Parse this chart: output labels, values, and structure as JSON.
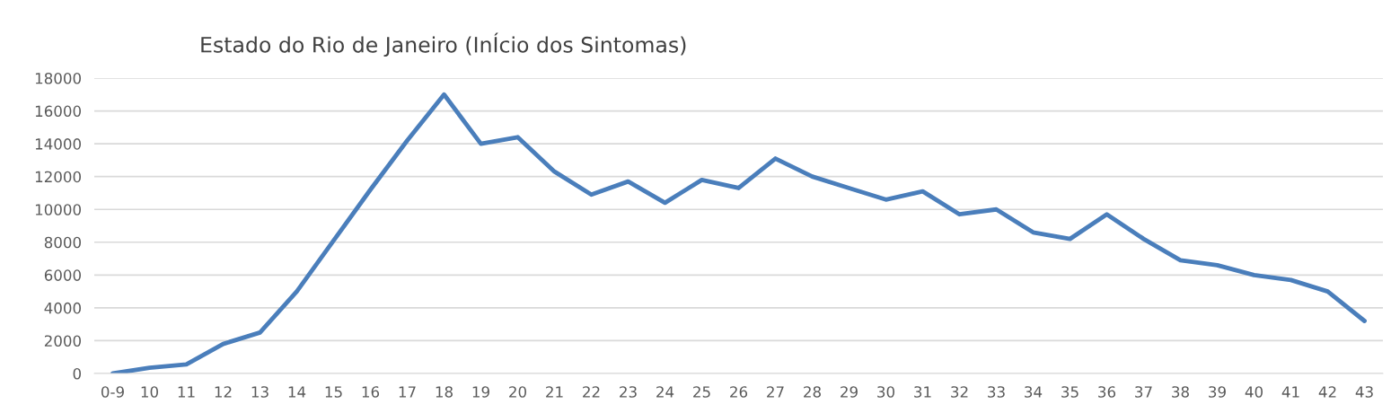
{
  "chart_data": {
    "type": "line",
    "title": "Estado do Rio de Janeiro (InÍcio dos Sintomas)",
    "categories": [
      "0-9",
      "10",
      "11",
      "12",
      "13",
      "14",
      "15",
      "16",
      "17",
      "18",
      "19",
      "20",
      "21",
      "22",
      "23",
      "24",
      "25",
      "26",
      "27",
      "28",
      "29",
      "30",
      "31",
      "32",
      "33",
      "34",
      "35",
      "36",
      "37",
      "38",
      "39",
      "40",
      "41",
      "42",
      "43"
    ],
    "series": [
      {
        "color": "#4a7ebb",
        "values": [
          0,
          350,
          550,
          1800,
          2500,
          5000,
          8100,
          11200,
          14200,
          17000,
          14000,
          14400,
          12300,
          10900,
          11700,
          10400,
          11800,
          11300,
          13100,
          12000,
          11300,
          10600,
          11100,
          9700,
          10000,
          8600,
          8200,
          9700,
          8200,
          6900,
          6600,
          6000,
          5700,
          5000,
          3200
        ]
      }
    ],
    "ylim": [
      0,
      18000
    ],
    "yticks": [
      0,
      2000,
      4000,
      6000,
      8000,
      10000,
      12000,
      14000,
      16000,
      18000
    ],
    "grid": "y",
    "marker": "none",
    "line_style": "solid",
    "legend": false
  }
}
